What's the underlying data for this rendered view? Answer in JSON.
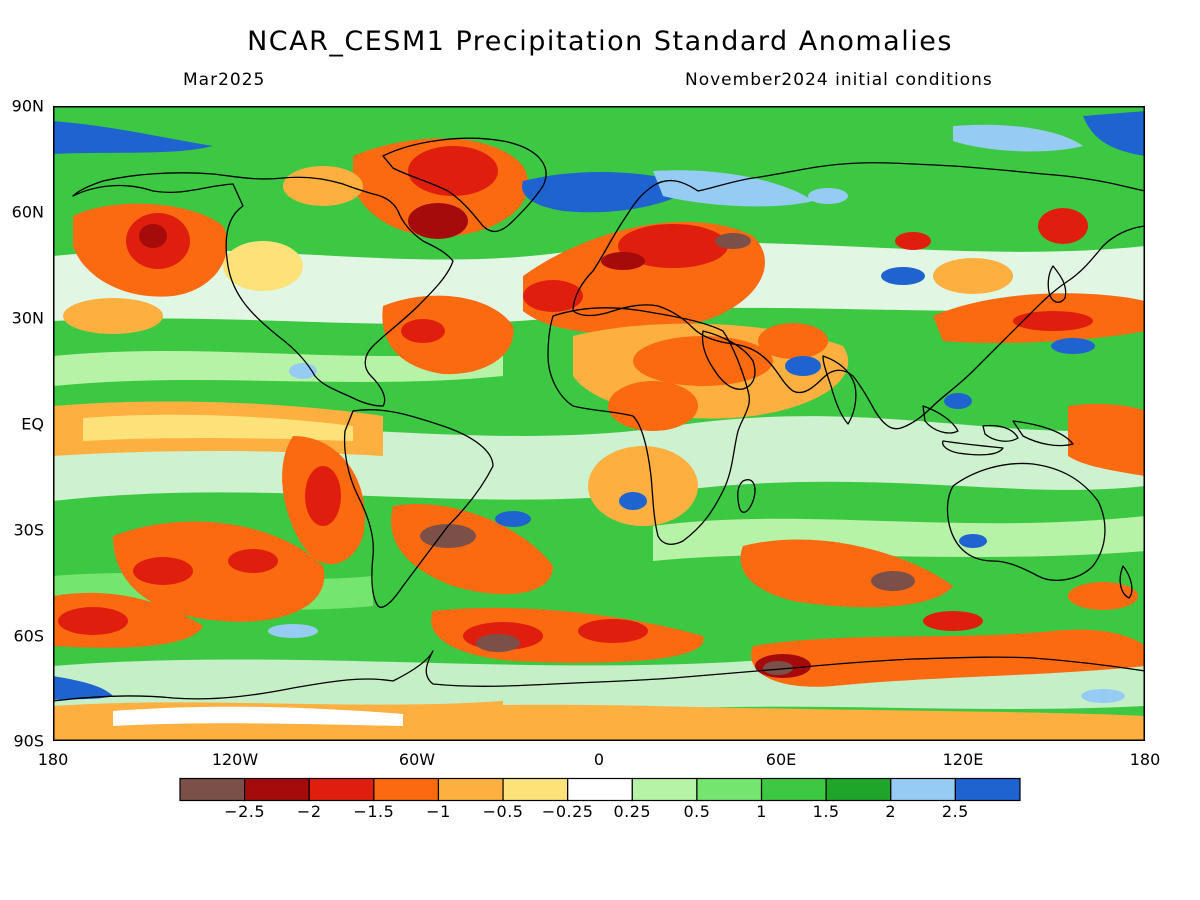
{
  "title": "NCAR_CESM1 Precipitation Standard Anomalies",
  "valid_month": "Mar2025",
  "initial_conditions": "November2024 initial conditions",
  "lat_labels": [
    "90N",
    "60N",
    "30N",
    "EQ",
    "30S",
    "60S",
    "90S"
  ],
  "lon_labels": [
    "180",
    "120W",
    "60W",
    "0",
    "60E",
    "120E",
    "180"
  ],
  "legend": {
    "labels": [
      "−2.5",
      "−2",
      "−1.5",
      "−1",
      "−0.5",
      "−0.25",
      "0.25",
      "0.5",
      "1",
      "1.5",
      "2",
      "2.5"
    ],
    "colors": [
      "#7b5048",
      "#a50b0b",
      "#e01e0e",
      "#fb6a10",
      "#fdb040",
      "#fde27a",
      "#ffffff",
      "#b7f3a6",
      "#74e56e",
      "#3dc843",
      "#1ea52a",
      "#96cbf3",
      "#1f63d1"
    ]
  },
  "map": {
    "projection": "cylindrical equidistant",
    "lon_range": [
      -180,
      180
    ],
    "lat_range": [
      -90,
      90
    ],
    "background_color": "#3dc843",
    "coastline_color": "#000000"
  }
}
